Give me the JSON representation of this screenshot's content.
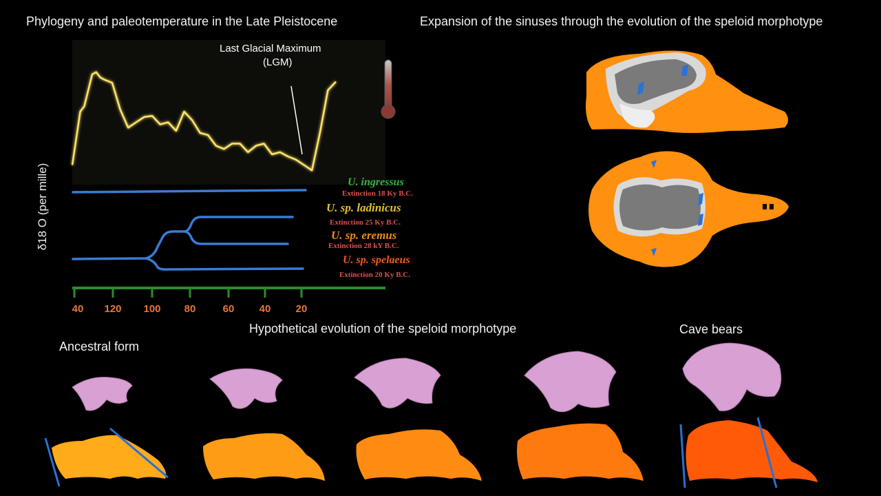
{
  "titles": {
    "phylogeny": "Phylogeny and paleotemperature in the Late Pleistocene",
    "sinuses": "Expansion of the sinuses through the evolution of the speloid morphotype",
    "hypothetical": "Hypothetical evolution of the speloid morphotype",
    "ancestral": "Ancestral form",
    "cave_bears": "Cave bears"
  },
  "chart": {
    "ylabel": "δ18 O (per mille)",
    "lgm_label_1": "Last Glacial Maximum",
    "lgm_label_2": "(LGM)",
    "x_ticks": [
      "40",
      "120",
      "100",
      "80",
      "60",
      "40",
      "20"
    ],
    "colors": {
      "curve": "#ffe46b",
      "branches": "#3a7bd5",
      "axis": "#2e8b2e",
      "ticks": "#e8763a"
    }
  },
  "chart_data": {
    "type": "line",
    "title": "Phylogeny and paleotemperature in the Late Pleistocene",
    "ylabel": "δ18 O (per mille)",
    "xlabel": "",
    "x_tick_labels": [
      "40",
      "120",
      "100",
      "80",
      "60",
      "40",
      "20"
    ],
    "series": [
      {
        "name": "δ18 O curve",
        "x": [
          140,
          136,
          134,
          132,
          130,
          128,
          126,
          124,
          120,
          116,
          112,
          108,
          104,
          100,
          96,
          92,
          88,
          84,
          80,
          76,
          72,
          68,
          64,
          60,
          56,
          52,
          48,
          44,
          40,
          36,
          32,
          28,
          24,
          20,
          16,
          12,
          8
        ],
        "values": [
          0.1,
          0.6,
          0.65,
          0.8,
          0.95,
          0.97,
          0.92,
          0.9,
          0.87,
          0.62,
          0.45,
          0.5,
          0.55,
          0.56,
          0.48,
          0.5,
          0.42,
          0.6,
          0.52,
          0.4,
          0.38,
          0.28,
          0.25,
          0.3,
          0.3,
          0.22,
          0.28,
          0.3,
          0.2,
          0.22,
          0.18,
          0.15,
          0.1,
          0.05,
          0.4,
          0.8,
          0.88
        ]
      }
    ],
    "species": [
      {
        "name": "U. ingressus",
        "extinction": "Extinction 18 Ky B.C."
      },
      {
        "name": "U. sp. ladinicus",
        "extinction": "Extinction 25 Ky B.C."
      },
      {
        "name": "U. sp. eremus",
        "extinction": "Extinction 28 kY B.C."
      },
      {
        "name": "U. sp. spelaeus",
        "extinction": "Extinction 20 Ky B.C."
      }
    ]
  },
  "species_colors": [
    "#3cb043",
    "#e0c030",
    "#f08a1c",
    "#f05a1c"
  ],
  "skull_colors": [
    "#ffab1a",
    "#ff9c16",
    "#ff8c12",
    "#ff7a0e",
    "#ff5a08"
  ]
}
